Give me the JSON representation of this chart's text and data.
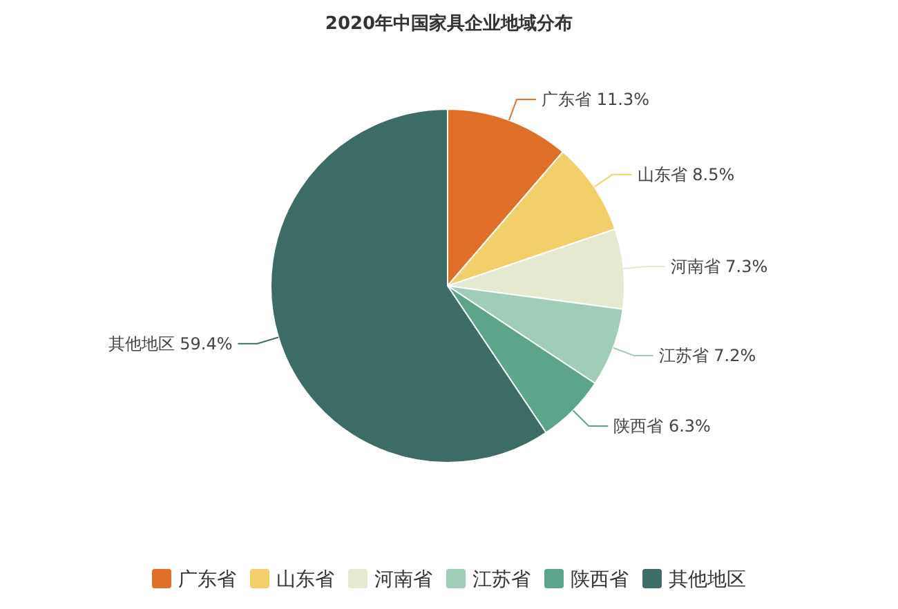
{
  "chart_data": {
    "type": "pie",
    "title": "2020年中国家具企业地域分布",
    "categories": [
      "广东省",
      "山东省",
      "河南省",
      "江苏省",
      "陕西省",
      "其他地区"
    ],
    "values": [
      11.3,
      8.5,
      7.3,
      7.2,
      6.3,
      59.4
    ],
    "value_labels": [
      "11.3%",
      "8.5%",
      "7.3%",
      "7.2%",
      "6.3%",
      "59.4%"
    ],
    "colors": [
      "#e07029",
      "#f2cf6a",
      "#e4e9d0",
      "#9fcdb8",
      "#5ca58a",
      "#3d6b65"
    ],
    "legend": "bottom"
  }
}
